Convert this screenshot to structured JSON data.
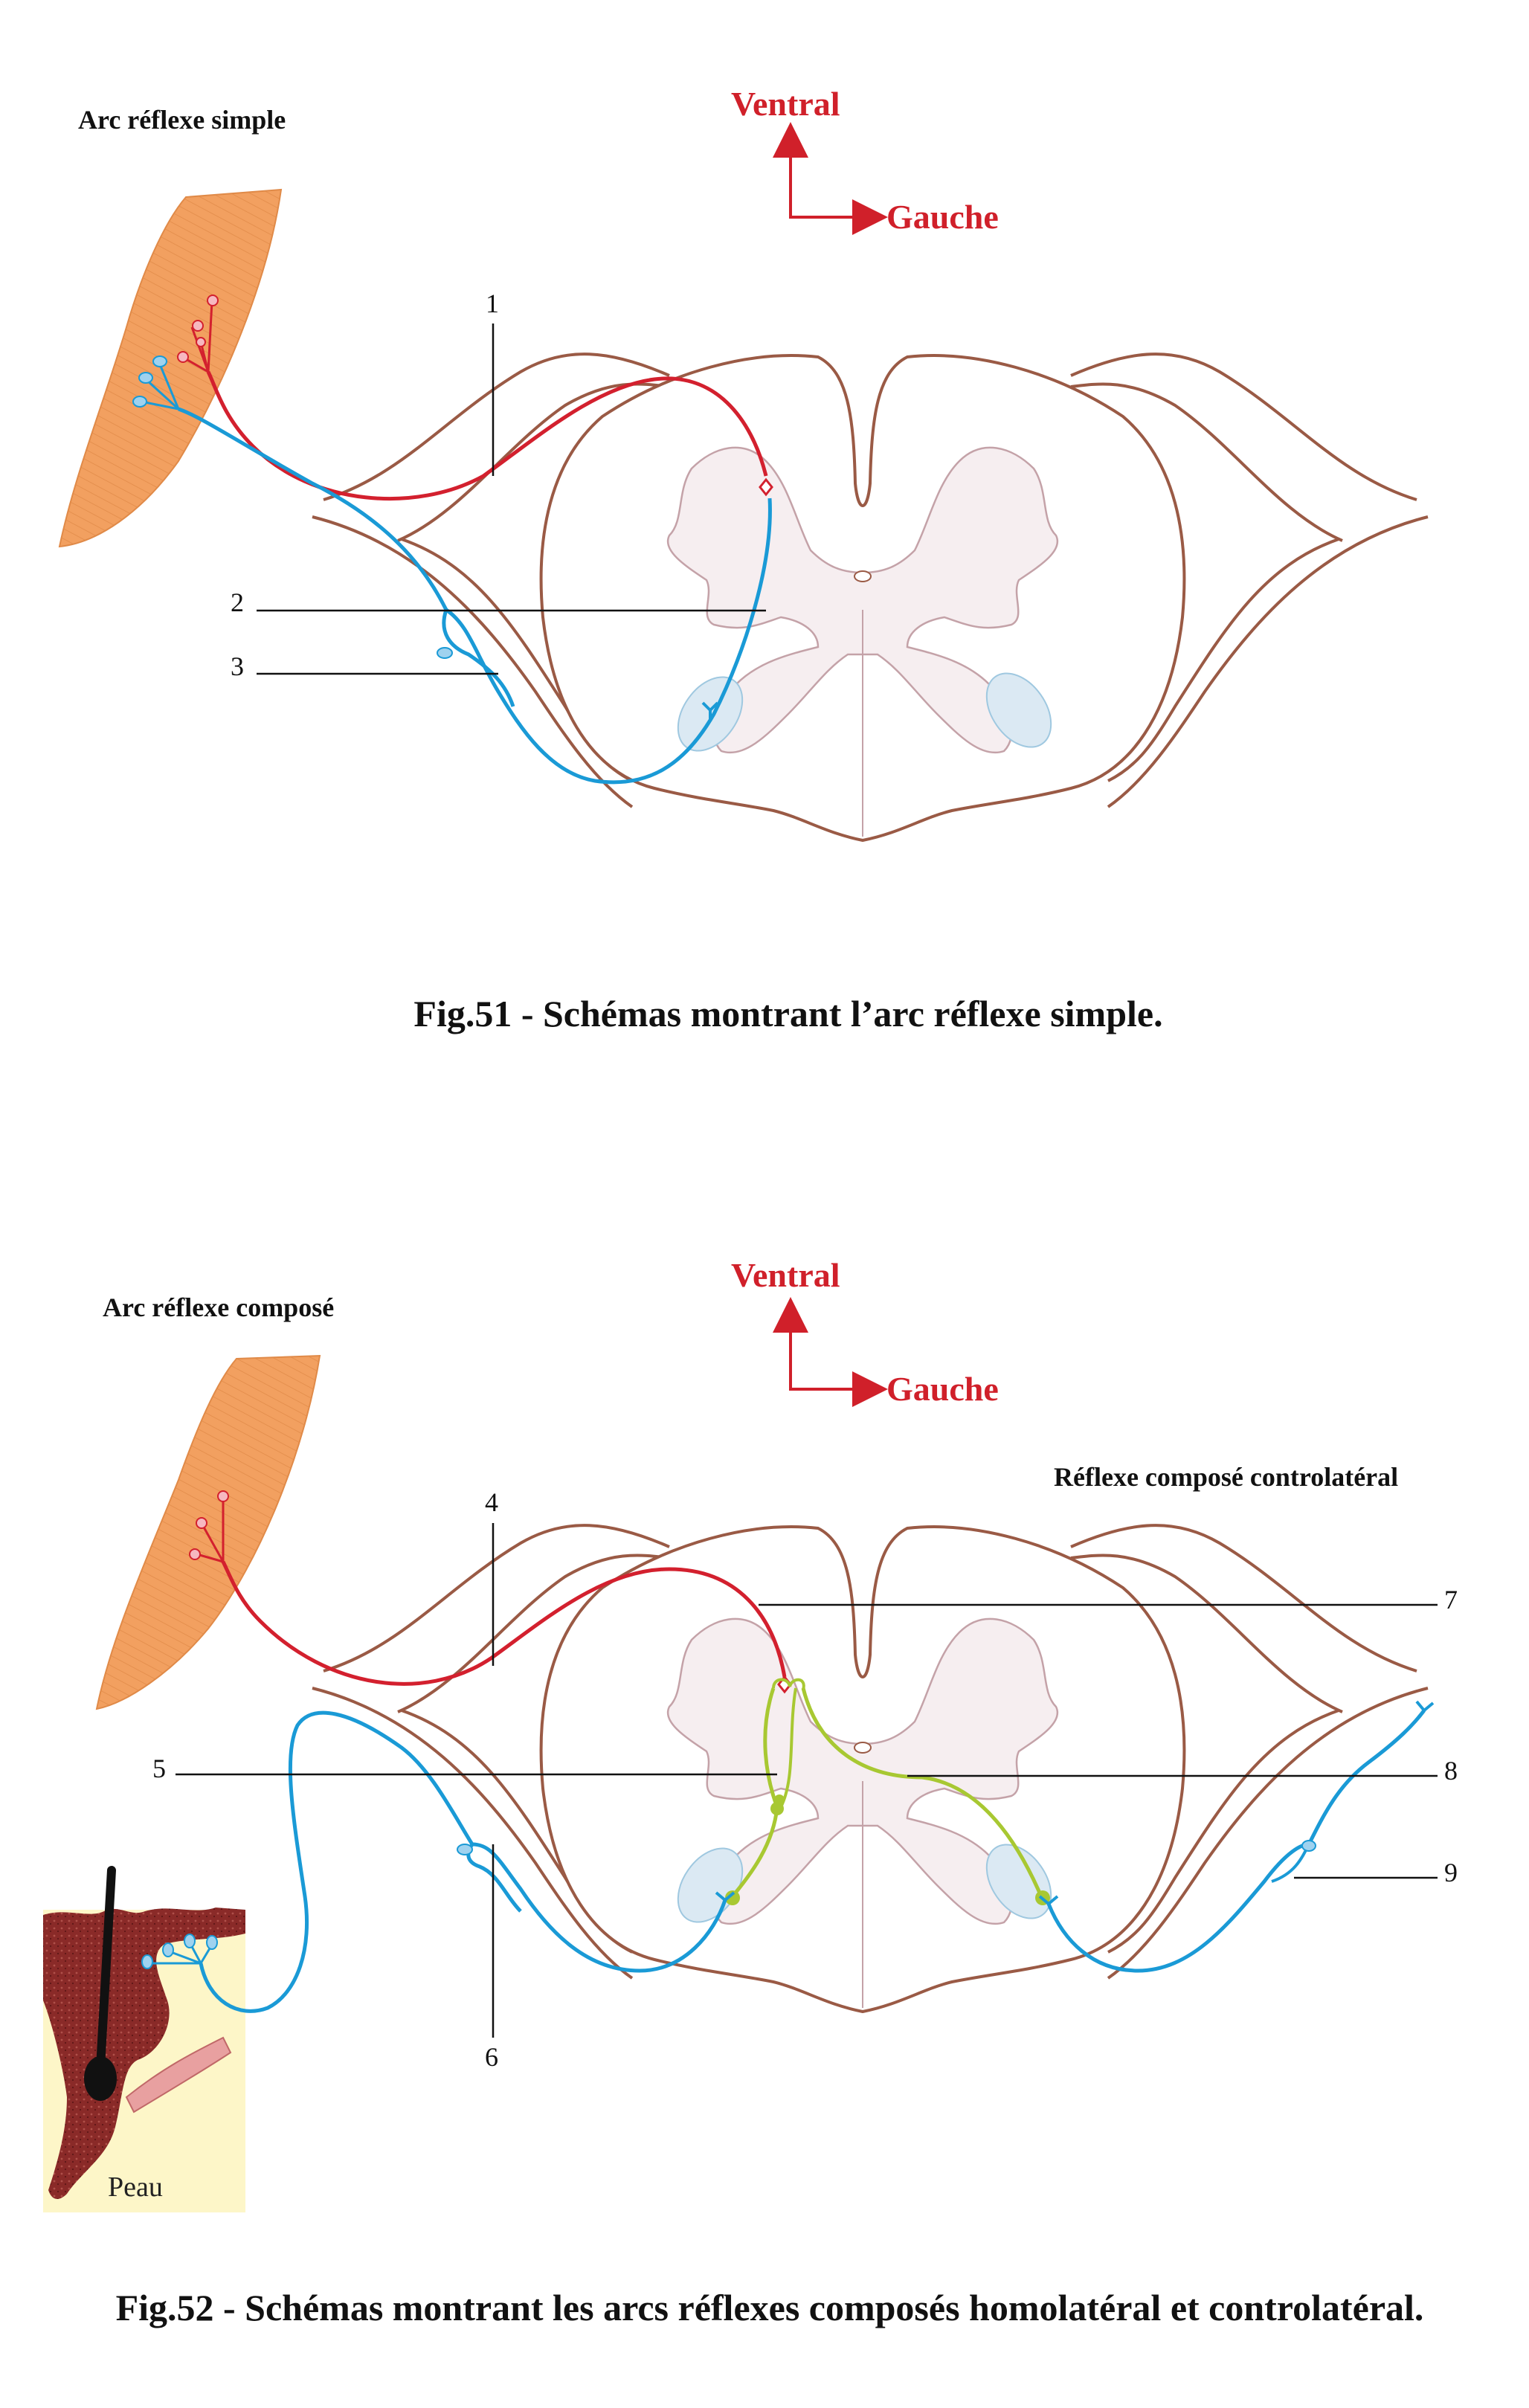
{
  "fig51": {
    "panel_title": "Arc réflexe simple",
    "orientation": {
      "vertical": "Ventral",
      "horizontal": "Gauche"
    },
    "labels": [
      "1",
      "2",
      "3"
    ],
    "caption": "Fig.51 - Schémas montrant l’arc réflexe simple."
  },
  "fig52": {
    "panel_title": "Arc réflexe composé",
    "orientation": {
      "vertical": "Ventral",
      "horizontal": "Gauche"
    },
    "right_title": "Réflexe composé controlatéral",
    "labels": [
      "4",
      "5",
      "6",
      "7",
      "8",
      "9"
    ],
    "skin_label": "Peau",
    "caption": "Fig.52 - Schémas montrant les arcs réflexes composés homolatéral et controlatéral."
  },
  "colors": {
    "motor_neuron": "#d3202e",
    "sensory_neuron": "#1a9ad6",
    "interneuron": "#a8c832",
    "cord_outline": "#9a5a45",
    "grey_matter": "#f6eef0",
    "muscle": "#f2a060",
    "skin": "#8a2a28",
    "skin_background": "#fdf6c8",
    "orientation_arrows": "#d0202a"
  },
  "icons": [
    "muscle-icon",
    "hair-follicle-icon"
  ]
}
